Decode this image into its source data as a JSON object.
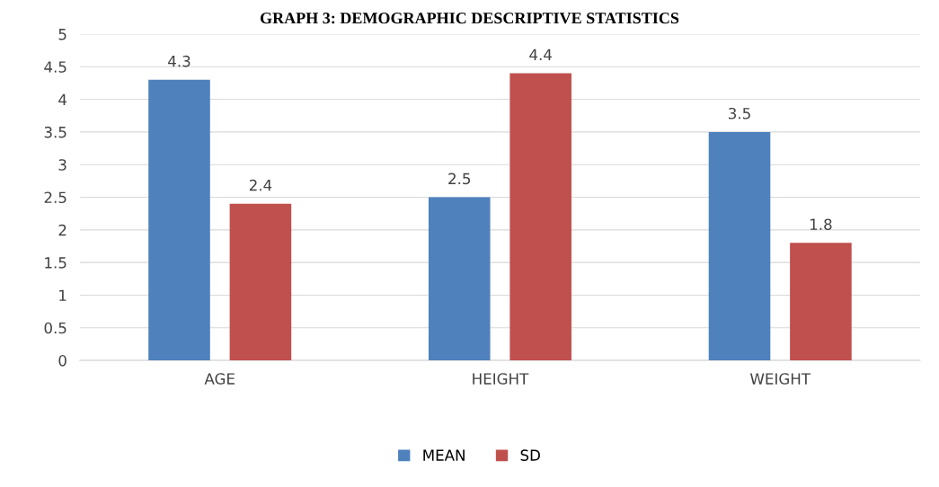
{
  "chart_data": {
    "type": "bar",
    "title": "GRAPH 3: DEMOGRAPHIC DESCRIPTIVE STATISTICS",
    "categories": [
      "AGE",
      "HEIGHT",
      "WEIGHT"
    ],
    "series": [
      {
        "name": "MEAN",
        "color": "#4f81bd",
        "values": [
          4.3,
          2.5,
          3.5
        ]
      },
      {
        "name": "SD",
        "color": "#c0504d",
        "values": [
          2.4,
          4.4,
          1.8
        ]
      }
    ],
    "ylim": [
      0,
      5
    ],
    "yticks": [
      0,
      0.5,
      1,
      1.5,
      2,
      2.5,
      3,
      3.5,
      4,
      4.5,
      5
    ],
    "grid": "y",
    "legend": "bottom",
    "data_labels": true
  }
}
